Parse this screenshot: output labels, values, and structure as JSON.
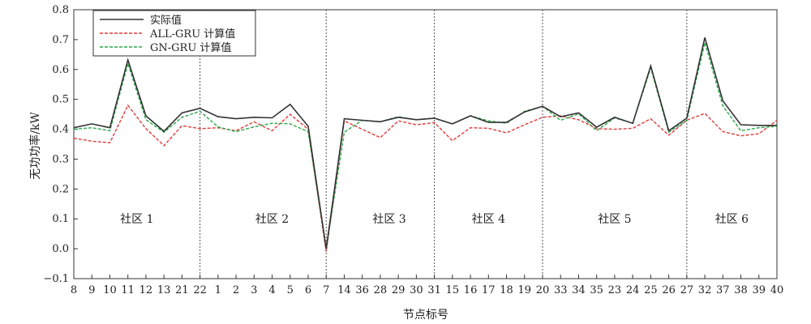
{
  "chart_data": {
    "type": "line",
    "xlabel": "节点标号",
    "ylabel": "无功功率/kW",
    "ylim": [
      -0.1,
      0.8
    ],
    "yticks": [
      "−0.1",
      "0.0",
      "0.1",
      "0.2",
      "0.3",
      "0.4",
      "0.5",
      "0.6",
      "0.7",
      "0.8"
    ],
    "categories": [
      "8",
      "9",
      "10",
      "11",
      "12",
      "13",
      "21",
      "22",
      "1",
      "2",
      "3",
      "4",
      "5",
      "6",
      "7",
      "14",
      "36",
      "28",
      "29",
      "30",
      "31",
      "15",
      "16",
      "17",
      "18",
      "19",
      "20",
      "33",
      "34",
      "35",
      "23",
      "24",
      "25",
      "26",
      "27",
      "32",
      "37",
      "38",
      "39",
      "40"
    ],
    "legend_position": "top-left",
    "grid": false,
    "series": [
      {
        "name": "实际值",
        "color": "#333333",
        "dash": "solid",
        "values": [
          0.405,
          0.418,
          0.405,
          0.632,
          0.445,
          0.393,
          0.455,
          0.47,
          0.442,
          0.435,
          0.44,
          0.438,
          0.483,
          0.41,
          0.0,
          0.435,
          0.43,
          0.425,
          0.44,
          0.432,
          0.437,
          0.418,
          0.445,
          0.423,
          0.423,
          0.458,
          0.477,
          0.442,
          0.455,
          0.407,
          0.44,
          0.42,
          0.612,
          0.395,
          0.437,
          0.707,
          0.495,
          0.415,
          0.413,
          0.413
        ]
      },
      {
        "name": "ALL-GRU 计算值",
        "color": "#e03c3c",
        "dash": "dashed",
        "values": [
          0.37,
          0.36,
          0.355,
          0.48,
          0.402,
          0.345,
          0.412,
          0.402,
          0.405,
          0.395,
          0.425,
          0.395,
          0.45,
          0.4,
          -0.01,
          0.428,
          0.4,
          0.372,
          0.428,
          0.415,
          0.422,
          0.362,
          0.405,
          0.403,
          0.388,
          0.415,
          0.44,
          0.445,
          0.432,
          0.402,
          0.4,
          0.403,
          0.435,
          0.38,
          0.43,
          0.453,
          0.392,
          0.378,
          0.385,
          0.43
        ]
      },
      {
        "name": "GN-GRU 计算值",
        "color": "#2aa84a",
        "dash": "dashed",
        "values": [
          0.4,
          0.405,
          0.395,
          0.62,
          0.432,
          0.39,
          0.44,
          0.46,
          0.408,
          0.392,
          0.408,
          0.42,
          0.418,
          0.392,
          0.0,
          0.39,
          0.43,
          0.425,
          0.442,
          0.432,
          0.437,
          0.418,
          0.445,
          0.428,
          0.42,
          0.46,
          0.477,
          0.43,
          0.452,
          0.395,
          0.438,
          0.42,
          0.605,
          0.39,
          0.43,
          0.69,
          0.478,
          0.395,
          0.405,
          0.41
        ]
      }
    ],
    "separators_after": [
      "22",
      "7",
      "31",
      "20",
      "27"
    ],
    "communities": [
      {
        "label": "社区 1",
        "from": "8",
        "to": "22"
      },
      {
        "label": "社区 2",
        "from": "22",
        "to": "14"
      },
      {
        "label": "社区 3",
        "from": "14",
        "to": "31"
      },
      {
        "label": "社区 4",
        "from": "31",
        "to": "20"
      },
      {
        "label": "社区 5",
        "from": "20",
        "to": "27"
      },
      {
        "label": "社区 6",
        "from": "27",
        "to": "40"
      }
    ]
  }
}
